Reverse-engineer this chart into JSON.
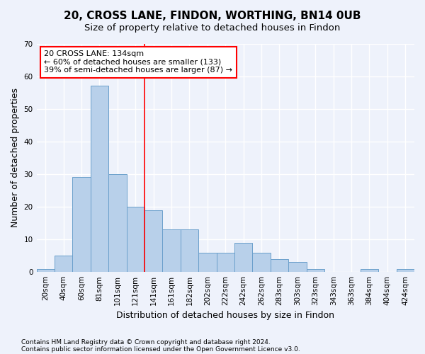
{
  "title": "20, CROSS LANE, FINDON, WORTHING, BN14 0UB",
  "subtitle": "Size of property relative to detached houses in Findon",
  "xlabel": "Distribution of detached houses by size in Findon",
  "ylabel": "Number of detached properties",
  "categories": [
    "20sqm",
    "40sqm",
    "60sqm",
    "81sqm",
    "101sqm",
    "121sqm",
    "141sqm",
    "161sqm",
    "182sqm",
    "202sqm",
    "222sqm",
    "242sqm",
    "262sqm",
    "283sqm",
    "303sqm",
    "323sqm",
    "343sqm",
    "363sqm",
    "384sqm",
    "404sqm",
    "424sqm"
  ],
  "values": [
    1,
    5,
    29,
    57,
    30,
    20,
    19,
    13,
    13,
    6,
    6,
    9,
    6,
    4,
    3,
    1,
    0,
    0,
    1,
    0,
    1
  ],
  "bar_color": "#b8d0ea",
  "bar_edge_color": "#6a9fcb",
  "property_line_x": 5.5,
  "annotation_text": "20 CROSS LANE: 134sqm\n← 60% of detached houses are smaller (133)\n39% of semi-detached houses are larger (87) →",
  "annotation_box_color": "white",
  "annotation_box_edge_color": "red",
  "vline_color": "red",
  "ylim": [
    0,
    70
  ],
  "yticks": [
    0,
    10,
    20,
    30,
    40,
    50,
    60,
    70
  ],
  "footnote1": "Contains HM Land Registry data © Crown copyright and database right 2024.",
  "footnote2": "Contains public sector information licensed under the Open Government Licence v3.0.",
  "bg_color": "#eef2fb",
  "grid_color": "white",
  "title_fontsize": 11,
  "subtitle_fontsize": 9.5,
  "label_fontsize": 9,
  "tick_fontsize": 7.5,
  "footnote_fontsize": 6.5
}
